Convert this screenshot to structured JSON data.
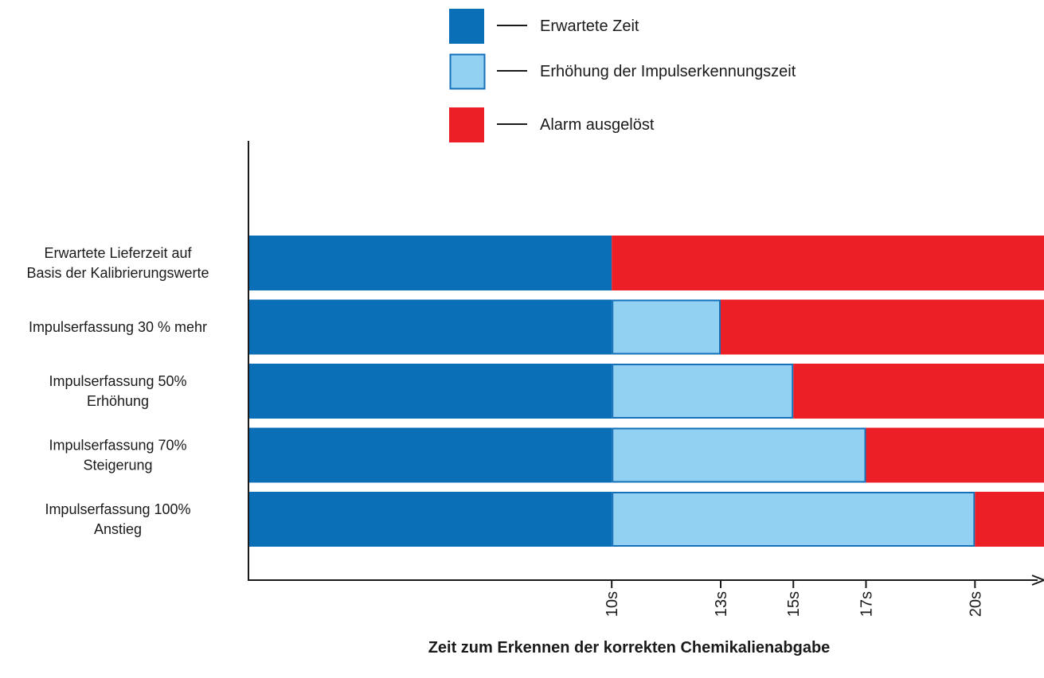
{
  "colors": {
    "expected": "#0b6fb8",
    "increase": "#92d1f2",
    "increase_border": "#1470b9",
    "alarm": "#ed1f26",
    "axis": "#1a1a1a"
  },
  "legend": [
    {
      "key": "expected",
      "label": "Erwartete Zeit"
    },
    {
      "key": "increase",
      "label": "Erhöhung der Impulserkennungszeit"
    },
    {
      "key": "alarm",
      "label": "Alarm ausgelöst"
    }
  ],
  "chart_data": {
    "type": "bar",
    "orientation": "horizontal",
    "stacked": true,
    "xlabel": "Zeit zum Erkennen der korrekten Chemikalienabgabe",
    "ylabel": "",
    "xlim": [
      0,
      21.9
    ],
    "x_ticks": [
      {
        "value": 10,
        "label": "10s"
      },
      {
        "value": 13,
        "label": "13s"
      },
      {
        "value": 15,
        "label": "15s"
      },
      {
        "value": 17,
        "label": "17s"
      },
      {
        "value": 20,
        "label": "20s"
      }
    ],
    "categories": [
      [
        "Erwartete Lieferzeit auf",
        "Basis der Kalibrierungswerte"
      ],
      [
        "Impulserfassung 30 % mehr"
      ],
      [
        "Impulserfassung 50%",
        "Erhöhung"
      ],
      [
        "Impulserfassung 70%",
        "Steigerung"
      ],
      [
        "Impulserfassung 100%",
        "Anstieg"
      ]
    ],
    "series": [
      {
        "name": "Erwartete Zeit",
        "key": "expected",
        "values": [
          10,
          10,
          10,
          10,
          10
        ]
      },
      {
        "name": "Erhöhung der Impulserkennungszeit",
        "key": "increase",
        "values": [
          0,
          3,
          5,
          7,
          10
        ]
      },
      {
        "name": "Alarm ausgelöst",
        "key": "alarm",
        "values": [
          11.9,
          8.9,
          6.9,
          4.9,
          1.9
        ]
      }
    ],
    "legend_position": "top-center",
    "grid": false
  }
}
